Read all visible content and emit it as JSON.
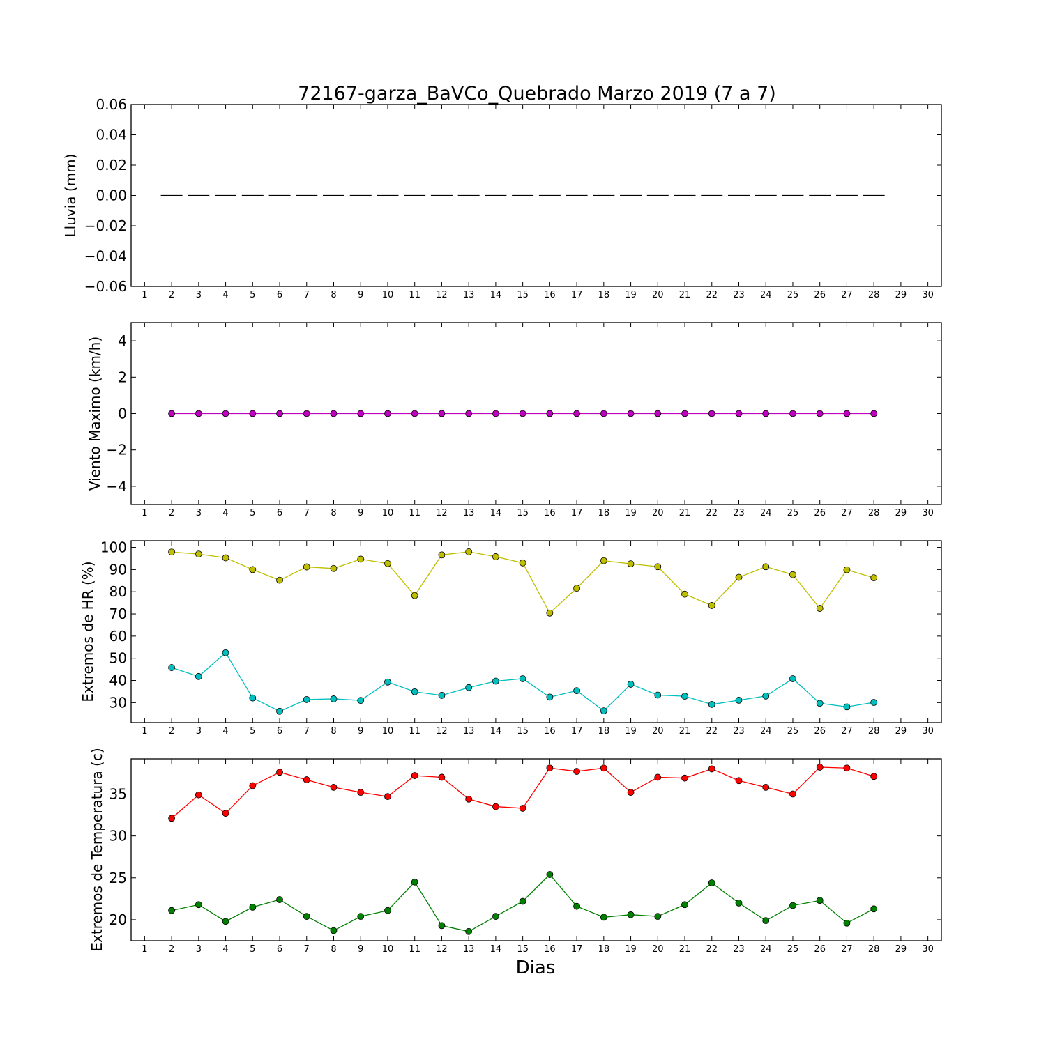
{
  "chart_data": {
    "title": "72167-garza_BaVCo_Quebrado Marzo 2019  (7 a 7)",
    "xlabel": "Dias",
    "x_ticks": [
      1,
      2,
      3,
      4,
      5,
      6,
      7,
      8,
      9,
      10,
      11,
      12,
      13,
      14,
      15,
      16,
      17,
      18,
      19,
      20,
      21,
      22,
      23,
      24,
      25,
      26,
      27,
      28,
      29,
      30
    ],
    "xlim": [
      0.5,
      30.5
    ],
    "days": [
      2,
      3,
      4,
      5,
      6,
      7,
      8,
      9,
      10,
      11,
      12,
      13,
      14,
      15,
      16,
      17,
      18,
      19,
      20,
      21,
      22,
      23,
      24,
      25,
      26,
      27,
      28
    ],
    "panels": [
      {
        "type": "bar",
        "ylabel": "Lluvia (mm)",
        "ylim": [
          -0.06,
          0.06
        ],
        "yticks": [
          0.06,
          0.04,
          0.02,
          0.0,
          -0.02,
          -0.04,
          -0.06
        ],
        "ytick_labels": [
          "0.06",
          "0.04",
          "0.02",
          "0.00",
          "−0.02",
          "−0.04",
          "−0.06"
        ],
        "series": [
          {
            "color": "#000000",
            "values": [
              0,
              0,
              0,
              0,
              0,
              0,
              0,
              0,
              0,
              0,
              0,
              0,
              0,
              0,
              0,
              0,
              0,
              0,
              0,
              0,
              0,
              0,
              0,
              0,
              0,
              0,
              0
            ]
          }
        ]
      },
      {
        "type": "line",
        "ylabel": "Viento Maximo (km/h)",
        "ylim": [
          -5,
          5
        ],
        "yticks": [
          4,
          2,
          0,
          -2,
          -4
        ],
        "ytick_labels": [
          "4",
          "2",
          "0",
          "−2",
          "−4"
        ],
        "series": [
          {
            "color": "#bf00bf",
            "values": [
              0,
              0,
              0,
              0,
              0,
              0,
              0,
              0,
              0,
              0,
              0,
              0,
              0,
              0,
              0,
              0,
              0,
              0,
              0,
              0,
              0,
              0,
              0,
              0,
              0,
              0,
              0
            ]
          }
        ]
      },
      {
        "type": "line",
        "ylabel": "Extremos de HR (%)",
        "ylim": [
          21,
          103
        ],
        "yticks": [
          100,
          90,
          80,
          70,
          60,
          50,
          40,
          30
        ],
        "ytick_labels": [
          "100",
          "90",
          "80",
          "70",
          "60",
          "50",
          "40",
          "30"
        ],
        "series": [
          {
            "color": "#bfbf00",
            "values": [
              97.9,
              97.0,
              95.3,
              90.0,
              85.2,
              91.2,
              90.5,
              94.7,
              92.7,
              78.3,
              96.6,
              98.0,
              95.8,
              93.0,
              70.4,
              81.6,
              94.0,
              92.6,
              91.3,
              78.9,
              73.8,
              86.5,
              91.3,
              87.7,
              72.5,
              89.9,
              86.3
            ]
          },
          {
            "color": "#00bfbf",
            "values": [
              45.8,
              41.8,
              52.5,
              32.1,
              26.1,
              31.4,
              31.7,
              31.0,
              39.3,
              34.9,
              33.3,
              36.8,
              39.7,
              40.8,
              32.5,
              35.4,
              26.3,
              38.3,
              33.4,
              32.9,
              29.2,
              31.1,
              33.0,
              40.8,
              29.7,
              28.1,
              30.1
            ]
          }
        ]
      },
      {
        "type": "line",
        "ylabel": "Extremos de Temperatura (c)",
        "ylim": [
          17.5,
          39.2
        ],
        "yticks": [
          35,
          30,
          25,
          20
        ],
        "ytick_labels": [
          "35",
          "30",
          "25",
          "20"
        ],
        "series": [
          {
            "color": "#ff0000",
            "values": [
              32.1,
              34.9,
              32.7,
              36.0,
              37.6,
              36.7,
              35.8,
              35.2,
              34.7,
              37.2,
              37.0,
              34.4,
              33.5,
              33.3,
              38.1,
              37.7,
              38.1,
              35.2,
              37.0,
              36.9,
              38.0,
              36.6,
              35.8,
              35.0,
              38.2,
              38.1,
              37.1
            ]
          },
          {
            "color": "#008000",
            "values": [
              21.1,
              21.8,
              19.8,
              21.5,
              22.4,
              20.4,
              18.7,
              20.4,
              21.1,
              24.5,
              19.3,
              18.6,
              20.4,
              22.2,
              25.4,
              21.6,
              20.3,
              20.6,
              20.4,
              21.8,
              24.4,
              22.0,
              19.9,
              21.7,
              22.3,
              19.6,
              21.3
            ]
          }
        ]
      }
    ]
  }
}
